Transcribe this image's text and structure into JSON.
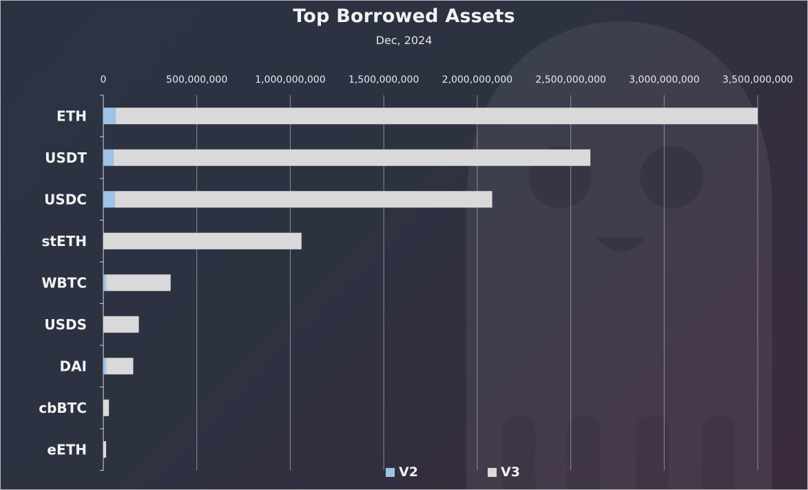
{
  "chart_data": {
    "type": "bar",
    "orientation": "horizontal",
    "stacked": true,
    "title": "Top Borrowed Assets",
    "subtitle": "Dec, 2024",
    "categories": [
      "ETH",
      "USDT",
      "USDC",
      "stETH",
      "WBTC",
      "USDS",
      "DAI",
      "cbBTC",
      "eETH"
    ],
    "series": [
      {
        "name": "V2",
        "color": "#9dc3e6",
        "values": [
          65000000,
          55000000,
          60000000,
          0,
          15000000,
          0,
          15000000,
          0,
          0
        ]
      },
      {
        "name": "V3",
        "color": "#d9d9d9",
        "values": [
          3435000000,
          2550000000,
          2020000000,
          1060000000,
          345000000,
          190000000,
          145000000,
          30000000,
          15000000
        ]
      }
    ],
    "xlim": [
      0,
      3500000000
    ],
    "xticks": [
      0,
      500000000,
      1000000000,
      1500000000,
      2000000000,
      2500000000,
      3000000000,
      3500000000
    ],
    "xtick_labels": [
      "0",
      "500,000,000",
      "1,000,000,000",
      "1,500,000,000",
      "2,000,000,000",
      "2,500,000,000",
      "3,000,000,000",
      "3,500,000,000"
    ],
    "grid": true,
    "legend": "bottom"
  }
}
